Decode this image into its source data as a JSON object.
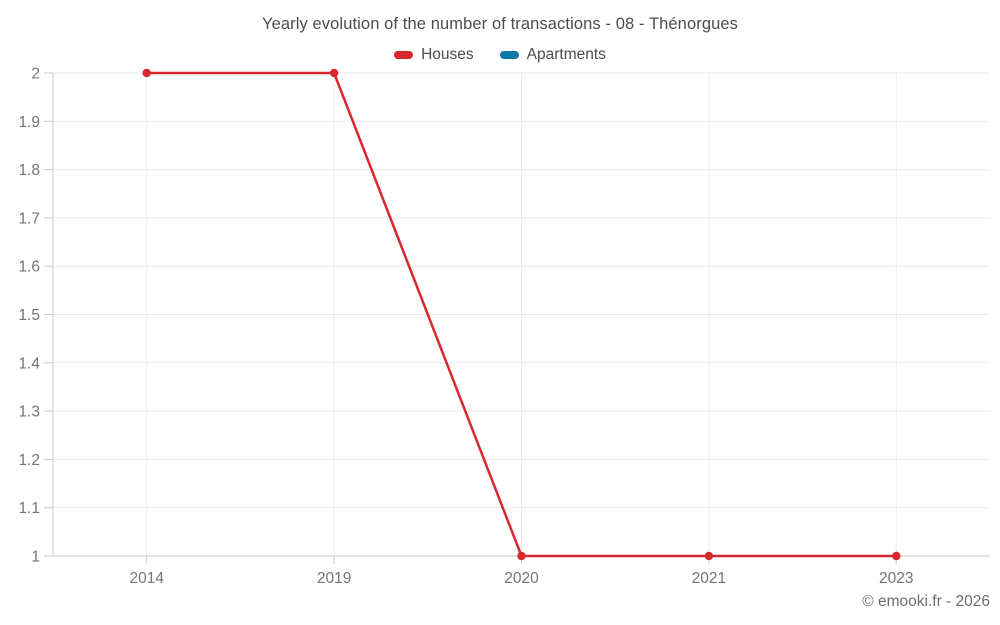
{
  "title": "Yearly evolution of the number of transactions - 08 - Thénorgues",
  "legend": {
    "items": [
      {
        "label": "Houses",
        "color": "#d7282f"
      },
      {
        "label": "Apartments",
        "color": "#0e76a8"
      }
    ]
  },
  "footer": {
    "copyright": "© emooki.fr - 2026"
  },
  "chart_data": {
    "type": "line",
    "title": "Yearly evolution of the number of transactions - 08 - Thénorgues",
    "xlabel": "",
    "ylabel": "",
    "categories": [
      "2014",
      "2019",
      "2020",
      "2021",
      "2023"
    ],
    "series": [
      {
        "name": "Houses",
        "color": "#d7282f",
        "values": [
          2,
          2,
          1,
          1,
          1
        ]
      },
      {
        "name": "Apartments",
        "color": "#0e76a8",
        "values": []
      }
    ],
    "ylim": [
      1,
      2
    ],
    "y_tick_step": 0.1,
    "y_tick_labels": [
      "1",
      "1.1",
      "1.2",
      "1.3",
      "1.4",
      "1.5",
      "1.6",
      "1.7",
      "1.8",
      "1.9",
      "2"
    ],
    "grid": true,
    "legend_position": "top",
    "colors": {
      "grid_line": "#e9e9e9",
      "vertical_grid_line": "#ededed",
      "axis_line": "#c9c9c9",
      "tick_label": "#757575",
      "title_text": "#4c4c4c"
    }
  }
}
